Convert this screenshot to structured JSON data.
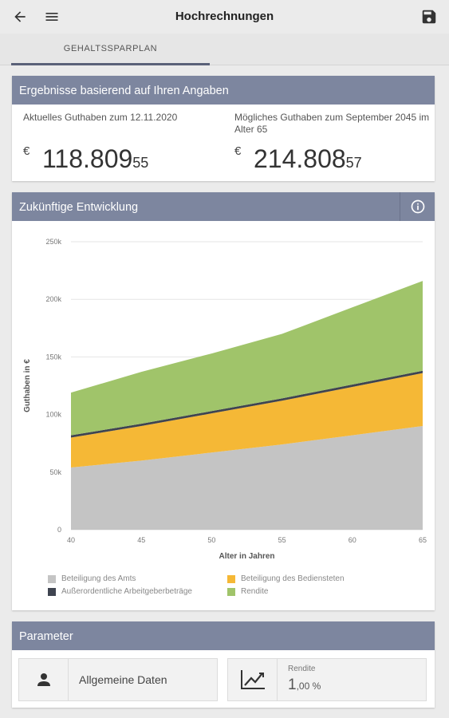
{
  "header": {
    "title": "Hochrechnungen",
    "back_icon": "arrow-left-icon",
    "menu_icon": "menu-icon",
    "save_icon": "save-icon"
  },
  "tabs": [
    {
      "label": "GEHALTSSPARPLAN",
      "active": true
    }
  ],
  "results": {
    "title": "Ergebnisse basierend auf Ihren Angaben",
    "current": {
      "label": "Aktuelles Guthaben zum 12.11.2020",
      "currency": "€",
      "integer": "118.809",
      "decimal": "55"
    },
    "future": {
      "label": "Mögliches Guthaben zum September 2045 im Alter 65",
      "currency": "€",
      "integer": "214.808",
      "decimal": "57"
    }
  },
  "development": {
    "title": "Zukünftige Entwicklung",
    "info_icon": "info-icon",
    "legend": [
      {
        "label": "Beteiligung des Amts",
        "color": "#c4c4c4"
      },
      {
        "label": "Beteiligung des Bediensteten",
        "color": "#f5b836"
      },
      {
        "label": "Außerordentliche Arbeitgeberbeträge",
        "color": "#3f4450"
      },
      {
        "label": "Rendite",
        "color": "#a0c46a"
      }
    ]
  },
  "chart_data": {
    "type": "area",
    "xlabel": "Alter in Jahren",
    "ylabel": "Guthaben in €",
    "xlim": [
      40,
      65
    ],
    "ylim": [
      0,
      250000
    ],
    "xticks": [
      "40",
      "45",
      "50",
      "55",
      "60",
      "65"
    ],
    "yticks": [
      "0",
      "50k",
      "100k",
      "150k",
      "200k",
      "250k"
    ],
    "grid": true,
    "x": [
      40,
      45,
      50,
      55,
      60,
      65
    ],
    "series": [
      {
        "name": "Beteiligung des Amts",
        "values": [
          54000,
          60000,
          67000,
          74000,
          82000,
          90000
        ]
      },
      {
        "name": "Beteiligung des Bediensteten",
        "values": [
          26000,
          30000,
          34000,
          38000,
          42000,
          46000
        ]
      },
      {
        "name": "Außerordentliche Arbeitgeberbeträge",
        "values": [
          2000,
          2000,
          2000,
          2000,
          2000,
          2000
        ]
      },
      {
        "name": "Rendite",
        "values": [
          37000,
          45000,
          50000,
          56000,
          67000,
          78000
        ]
      }
    ]
  },
  "parameters": {
    "title": "Parameter",
    "general": {
      "label": "Allgemeine Daten",
      "icon": "person-icon"
    },
    "return": {
      "label": "Rendite",
      "integer": "1",
      "decimal": ",00 %",
      "icon": "trend-chart-icon"
    }
  }
}
